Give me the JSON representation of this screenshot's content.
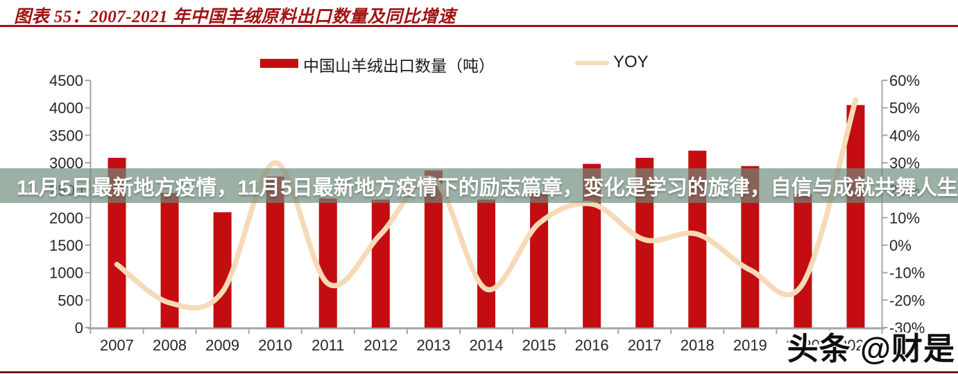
{
  "header": {
    "title": "图表 55：2007-2021 年中国羊绒原料出口数量及同比增速"
  },
  "legend": {
    "bars_label": "中国山羊绒出口数量（吨）",
    "line_label": "YOY"
  },
  "overlay": {
    "text": "11月5日最新地方疫情，11月5日最新地方疫情下的励志篇章，变化是学习的旋律，自信与成就共舞人生舞台"
  },
  "watermark": {
    "text": "头条 @财是"
  },
  "colors": {
    "bar": "#C30D10",
    "line": "#F6DAB8",
    "title": "#A11212",
    "band": "rgba(110,139,122,0.68)",
    "axis": "#A6A6A6",
    "tick_label": "#262626",
    "bottom_rule": "#7D1418",
    "title_rule": "#A11212"
  },
  "chart_data": {
    "type": "bar",
    "title": "图表 55：2007-2021 年中国羊绒原料出口数量及同比增速",
    "categories": [
      "2007",
      "2008",
      "2009",
      "2010",
      "2011",
      "2012",
      "2013",
      "2014",
      "2015",
      "2016",
      "2017",
      "2018",
      "2019",
      "2020",
      "2021"
    ],
    "series": [
      {
        "name": "中国山羊绒出口数量（吨）",
        "type": "bar",
        "axis": "left",
        "values": [
          3090,
          2450,
          2100,
          2750,
          2350,
          2330,
          2860,
          2330,
          2450,
          2980,
          3090,
          3220,
          2940,
          2430,
          4050
        ]
      },
      {
        "name": "YOY",
        "type": "line",
        "axis": "right",
        "values": [
          -7,
          -21,
          -17,
          30,
          -14,
          4,
          24,
          -16,
          8,
          15,
          2,
          4,
          -9,
          -14,
          53
        ]
      }
    ],
    "left_axis": {
      "min": 0,
      "max": 4500,
      "step": 500
    },
    "right_axis": {
      "min": -30,
      "max": 60,
      "step": 10,
      "suffix": "%"
    },
    "grid": false,
    "legend_position": "top"
  }
}
